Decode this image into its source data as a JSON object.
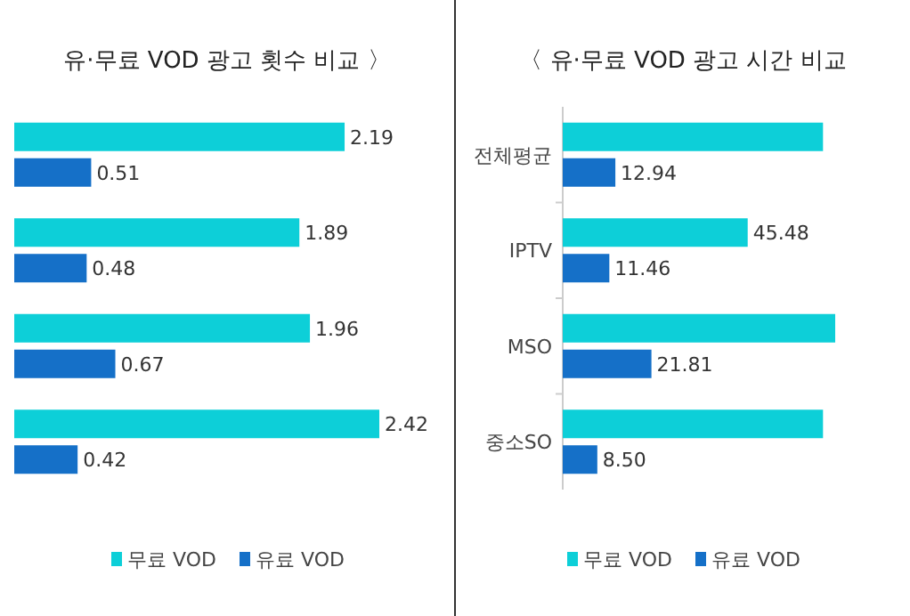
{
  "chart_data": [
    {
      "type": "bar",
      "orientation": "horizontal",
      "title": "유·무료 VOD 광고 횟수 비교 〉",
      "categories": [
        null,
        null,
        null,
        null
      ],
      "data_labels": true,
      "legend": "bottom",
      "series": [
        {
          "name": "무료 VOD",
          "color": "#0dcfd8",
          "values": [
            2.19,
            1.89,
            1.96,
            2.42
          ]
        },
        {
          "name": "유료 VOD",
          "color": "#1570c8",
          "values": [
            0.51,
            0.48,
            0.67,
            0.42
          ]
        }
      ]
    },
    {
      "type": "bar",
      "orientation": "horizontal",
      "title": "〈 유·무료 VOD 광고 시간 비교",
      "categories": [
        "전체평균",
        "IPTV",
        "MSO",
        "중소SO"
      ],
      "legend": "bottom",
      "series": [
        {
          "name": "무료 VOD",
          "color": "#0dcfd8",
          "values": [
            64,
            45.48,
            67,
            64
          ],
          "value_labels": [
            null,
            "45.48",
            null,
            null
          ]
        },
        {
          "name": "유료 VOD",
          "color": "#1570c8",
          "values": [
            12.94,
            11.46,
            21.81,
            8.5
          ],
          "value_labels": [
            "12.94",
            "11.46",
            "21.81",
            "8.50"
          ]
        }
      ]
    }
  ]
}
